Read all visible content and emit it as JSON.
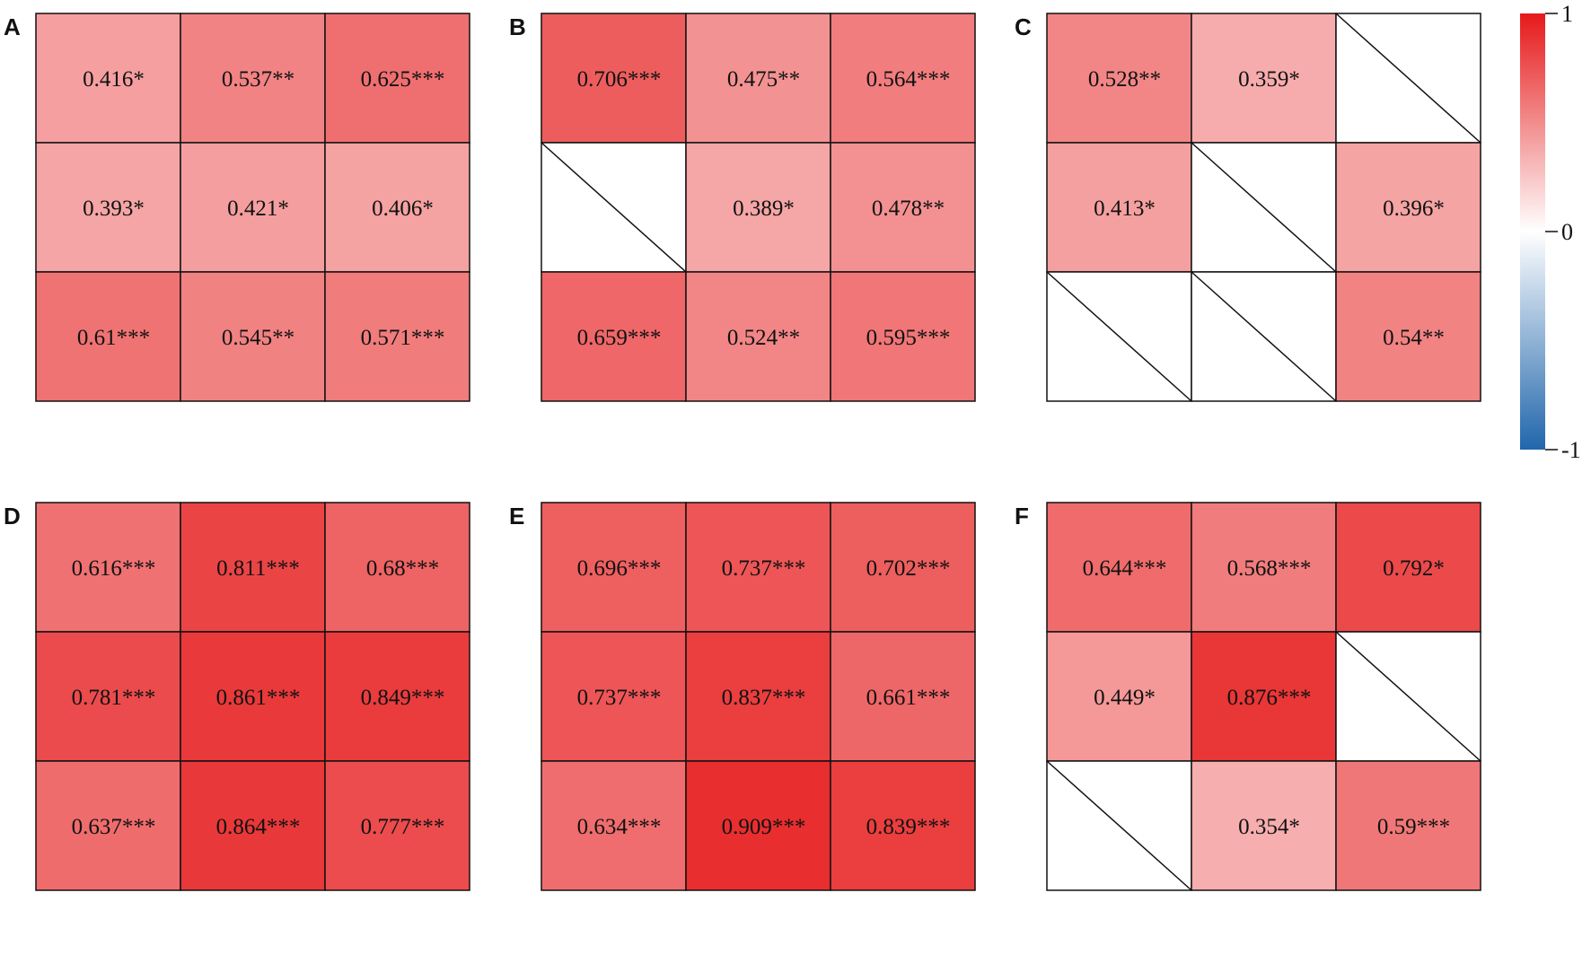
{
  "chart_data": {
    "type": "heatmap",
    "scale": {
      "min": -1,
      "max": 1,
      "low_color": "#2166ac",
      "mid_color": "#ffffff",
      "high_color": "#e6191a"
    },
    "colorbar": {
      "ticks": [
        1,
        0,
        -1
      ],
      "tick_labels": [
        "1",
        "0",
        "-1"
      ]
    },
    "panels": [
      {
        "label": "A",
        "cells": [
          [
            {
              "value": 0.416,
              "sig": "*"
            },
            {
              "value": 0.537,
              "sig": "**"
            },
            {
              "value": 0.625,
              "sig": "***"
            }
          ],
          [
            {
              "value": 0.393,
              "sig": "*"
            },
            {
              "value": 0.421,
              "sig": "*"
            },
            {
              "value": 0.406,
              "sig": "*"
            }
          ],
          [
            {
              "value": 0.61,
              "sig": "***"
            },
            {
              "value": 0.545,
              "sig": "**"
            },
            {
              "value": 0.571,
              "sig": "***"
            }
          ]
        ]
      },
      {
        "label": "B",
        "cells": [
          [
            {
              "value": 0.706,
              "sig": "***"
            },
            {
              "value": 0.475,
              "sig": "**"
            },
            {
              "value": 0.564,
              "sig": "***"
            }
          ],
          [
            null,
            {
              "value": 0.389,
              "sig": "*"
            },
            {
              "value": 0.478,
              "sig": "**"
            }
          ],
          [
            {
              "value": 0.659,
              "sig": "***"
            },
            {
              "value": 0.524,
              "sig": "**"
            },
            {
              "value": 0.595,
              "sig": "***"
            }
          ]
        ]
      },
      {
        "label": "C",
        "cells": [
          [
            {
              "value": 0.528,
              "sig": "**"
            },
            {
              "value": 0.359,
              "sig": "*"
            },
            null
          ],
          [
            {
              "value": 0.413,
              "sig": "*"
            },
            null,
            {
              "value": 0.396,
              "sig": "*"
            }
          ],
          [
            null,
            null,
            {
              "value": 0.54,
              "sig": "**"
            }
          ]
        ]
      },
      {
        "label": "D",
        "cells": [
          [
            {
              "value": 0.616,
              "sig": "***"
            },
            {
              "value": 0.811,
              "sig": "***"
            },
            {
              "value": 0.68,
              "sig": "***"
            }
          ],
          [
            {
              "value": 0.781,
              "sig": "***"
            },
            {
              "value": 0.861,
              "sig": "***"
            },
            {
              "value": 0.849,
              "sig": "***"
            }
          ],
          [
            {
              "value": 0.637,
              "sig": "***"
            },
            {
              "value": 0.864,
              "sig": "***"
            },
            {
              "value": 0.777,
              "sig": "***"
            }
          ]
        ]
      },
      {
        "label": "E",
        "cells": [
          [
            {
              "value": 0.696,
              "sig": "***"
            },
            {
              "value": 0.737,
              "sig": "***"
            },
            {
              "value": 0.702,
              "sig": "***"
            }
          ],
          [
            {
              "value": 0.737,
              "sig": "***"
            },
            {
              "value": 0.837,
              "sig": "***"
            },
            {
              "value": 0.661,
              "sig": "***"
            }
          ],
          [
            {
              "value": 0.634,
              "sig": "***"
            },
            {
              "value": 0.909,
              "sig": "***"
            },
            {
              "value": 0.839,
              "sig": "***"
            }
          ]
        ]
      },
      {
        "label": "F",
        "cells": [
          [
            {
              "value": 0.644,
              "sig": "***"
            },
            {
              "value": 0.568,
              "sig": "***"
            },
            {
              "value": 0.792,
              "sig": "*"
            }
          ],
          [
            {
              "value": 0.449,
              "sig": "*"
            },
            {
              "value": 0.876,
              "sig": "***"
            },
            null
          ],
          [
            null,
            {
              "value": 0.354,
              "sig": "*"
            },
            {
              "value": 0.59,
              "sig": "***"
            }
          ]
        ]
      }
    ]
  }
}
